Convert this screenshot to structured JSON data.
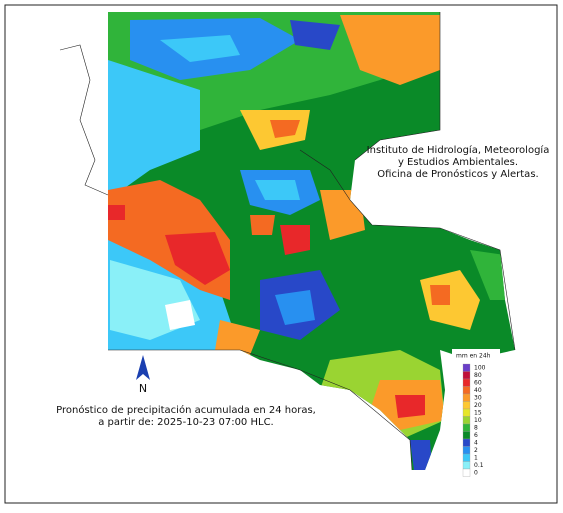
{
  "institution": [
    "Instituto de Hidrología, Meteorología",
    "y Estudios Ambientales.",
    "Oficina de Pronósticos y Alertas."
  ],
  "caption": [
    "Pronóstico de precipitación acumulada en 24 horas,",
    "a partir de: 2025-10-23 07:00 HLC."
  ],
  "north_label": "N",
  "legend": {
    "title": "mm en 24h",
    "levels": [
      100,
      80,
      60,
      40,
      30,
      20,
      15,
      10,
      8,
      6,
      4,
      2,
      1,
      0.1,
      0
    ],
    "colors": [
      "#6a3fc8",
      "#c0103a",
      "#e8282a",
      "#f46a22",
      "#fb9a2a",
      "#fdc832",
      "#e6e62a",
      "#9ad432",
      "#30b43a",
      "#0a8a28",
      "#2848c8",
      "#2890f0",
      "#3cc8f8",
      "#8af0f8",
      "#ffffff"
    ]
  }
}
